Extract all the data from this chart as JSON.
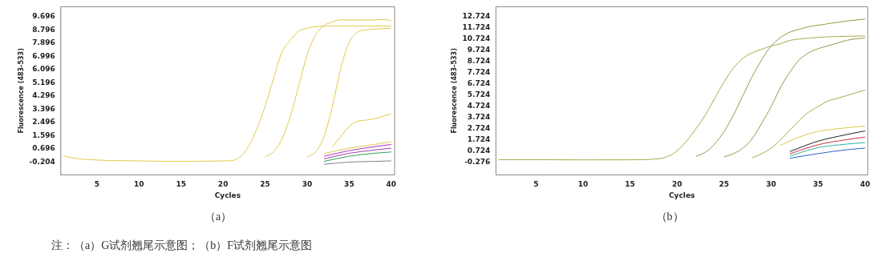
{
  "chart_data": [
    {
      "type": "line",
      "xlabel": "Cycles",
      "ylabel": "Fluorescence (483-533)",
      "xlim": [
        0.7,
        40.4
      ],
      "ylim": [
        -1.07,
        10.39
      ],
      "xticks": [
        5,
        10,
        15,
        20,
        25,
        30,
        35,
        40
      ],
      "yticks": [
        -0.204,
        0.696,
        1.596,
        2.496,
        3.396,
        4.296,
        5.196,
        6.096,
        6.996,
        7.896,
        8.796,
        9.696
      ],
      "marker": "none",
      "line_style": "solid",
      "annotations": [
        "（a）",
        "注：（a）G试剂翘尾示意图；（b）F试剂翘尾示意图"
      ],
      "series": [
        {
          "color": "#e2c84a",
          "x": [
            1,
            2,
            5,
            10,
            15,
            20,
            21,
            22,
            23,
            24,
            25,
            26,
            27,
            28,
            29,
            30,
            31,
            32,
            35,
            38,
            40
          ],
          "values": [
            0.23,
            0.09,
            -0.06,
            -0.12,
            -0.15,
            -0.12,
            -0.1,
            0.15,
            0.84,
            2.05,
            3.6,
            5.5,
            7.3,
            8.1,
            8.74,
            8.92,
            9.04,
            9.06,
            9.08,
            9.08,
            9.07
          ]
        },
        {
          "color": "#e2c84a",
          "x": [
            25,
            26,
            27,
            28,
            29,
            30,
            31,
            32,
            33,
            34,
            36,
            38,
            39,
            40
          ],
          "values": [
            0.15,
            0.5,
            1.36,
            2.92,
            5.0,
            7.1,
            8.48,
            9.09,
            9.35,
            9.49,
            9.49,
            9.49,
            9.52,
            9.44
          ]
        },
        {
          "color": "#e2c84a",
          "x": [
            30,
            31,
            32,
            33,
            34,
            35,
            36,
            37,
            38,
            39,
            40
          ],
          "values": [
            0.15,
            0.5,
            1.53,
            3.6,
            6.2,
            7.96,
            8.66,
            8.8,
            8.86,
            8.9,
            8.93
          ]
        },
        {
          "color": "#e2c84a",
          "x": [
            33,
            34,
            35,
            36,
            37,
            38,
            39,
            40
          ],
          "values": [
            0.84,
            1.53,
            2.23,
            2.58,
            2.66,
            2.75,
            2.92,
            3.1
          ]
        },
        {
          "color": "#e2c84a",
          "x": [
            32,
            35,
            38,
            40
          ],
          "values": [
            0.38,
            0.75,
            1.0,
            1.19
          ]
        },
        {
          "color": "#b030c0",
          "x": [
            32,
            35,
            38,
            40
          ],
          "values": [
            0.2,
            0.58,
            0.85,
            1.0
          ]
        },
        {
          "color": "#a040b0",
          "x": [
            32,
            35,
            38,
            40
          ],
          "values": [
            0.02,
            0.4,
            0.62,
            0.75
          ]
        },
        {
          "color": "#30a050",
          "x": [
            32,
            35,
            38,
            40
          ],
          "values": [
            -0.15,
            0.2,
            0.4,
            0.49
          ]
        },
        {
          "color": "#808090",
          "x": [
            32,
            35,
            38,
            40
          ],
          "values": [
            -0.35,
            -0.2,
            -0.15,
            -0.12
          ]
        }
      ]
    },
    {
      "type": "line",
      "xlabel": "Cycles",
      "ylabel": "Fluorescence (483-533)",
      "xlim": [
        0.73,
        40.28
      ],
      "ylim": [
        -1.38,
        13.58
      ],
      "xticks": [
        5,
        10,
        15,
        20,
        25,
        30,
        35,
        40
      ],
      "yticks": [
        -0.276,
        0.724,
        1.724,
        2.724,
        3.724,
        4.724,
        5.724,
        6.724,
        7.724,
        8.724,
        9.724,
        10.724,
        11.724,
        12.724
      ],
      "marker": "none",
      "line_style": "solid",
      "annotations": [
        "（b）"
      ],
      "series": [
        {
          "color": "#a8a84a",
          "x": [
            1,
            5,
            10,
            15,
            18,
            19,
            20,
            21,
            22,
            23,
            24,
            25,
            26,
            27,
            28,
            29,
            30,
            31,
            32,
            34,
            36,
            38,
            40
          ],
          "values": [
            -0.03,
            -0.03,
            -0.05,
            -0.04,
            0.05,
            0.26,
            0.76,
            1.62,
            2.72,
            3.95,
            5.42,
            6.9,
            8.13,
            8.99,
            9.48,
            9.8,
            10.09,
            10.29,
            10.58,
            10.78,
            10.9,
            10.95,
            10.98
          ]
        },
        {
          "color": "#98984a",
          "x": [
            22,
            23,
            24,
            25,
            26,
            27,
            28,
            29,
            30,
            31,
            32,
            33,
            34,
            35,
            36,
            38,
            40
          ],
          "values": [
            0.26,
            0.63,
            1.37,
            2.48,
            3.95,
            5.67,
            7.39,
            8.86,
            10.09,
            10.83,
            11.32,
            11.57,
            11.81,
            11.93,
            12.06,
            12.3,
            12.48
          ]
        },
        {
          "color": "#98984a",
          "x": [
            25,
            26,
            27,
            28,
            29,
            30,
            31,
            32,
            33,
            34,
            35,
            36,
            37,
            38,
            39,
            40
          ],
          "values": [
            0.22,
            0.51,
            1.0,
            1.86,
            3.21,
            4.69,
            6.41,
            7.76,
            8.86,
            9.48,
            9.85,
            10.09,
            10.34,
            10.58,
            10.72,
            10.8
          ]
        },
        {
          "color": "#a8a84a",
          "x": [
            28,
            29,
            30,
            31,
            32,
            33,
            34,
            35,
            36,
            37,
            38,
            39,
            40
          ],
          "values": [
            0.14,
            0.51,
            1.0,
            1.74,
            2.6,
            3.46,
            4.2,
            4.69,
            5.18,
            5.42,
            5.67,
            5.92,
            6.16
          ]
        },
        {
          "color": "#d8c84a",
          "x": [
            31,
            33,
            35,
            37,
            40
          ],
          "values": [
            1.25,
            1.98,
            2.48,
            2.72,
            2.97
          ]
        },
        {
          "color": "#202020",
          "x": [
            32,
            35,
            38,
            40
          ],
          "values": [
            0.7,
            1.62,
            2.2,
            2.53
          ]
        },
        {
          "color": "#d03040",
          "x": [
            32,
            35,
            38,
            40
          ],
          "values": [
            0.5,
            1.3,
            1.75,
            1.98
          ]
        },
        {
          "color": "#30b0a0",
          "x": [
            32,
            35,
            38,
            40
          ],
          "values": [
            0.3,
            1.05,
            1.35,
            1.49
          ]
        },
        {
          "color": "#3060d0",
          "x": [
            32,
            35,
            38,
            40
          ],
          "values": [
            0.1,
            0.51,
            0.85,
            1.0
          ]
        }
      ]
    }
  ]
}
